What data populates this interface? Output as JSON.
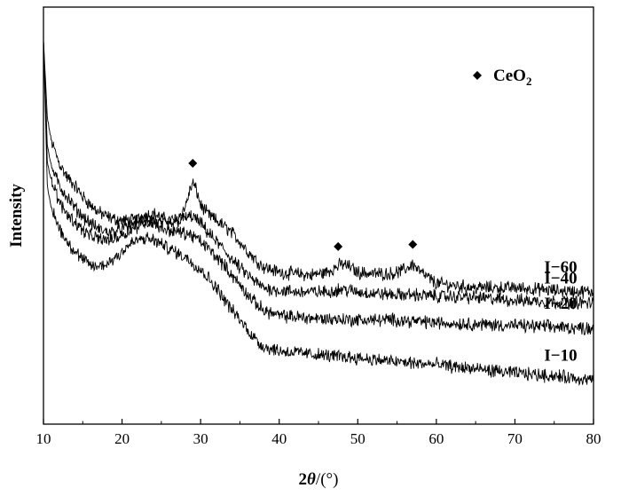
{
  "chart_data": {
    "type": "line",
    "xlabel_prefix": "2",
    "xlabel_var": "θ",
    "xlabel_suffix": "/(°)",
    "ylabel": "Intensity",
    "xlim": [
      10,
      80
    ],
    "xticks": [
      10,
      20,
      30,
      40,
      50,
      60,
      70,
      80
    ],
    "yticks": "none",
    "grid": false,
    "legend": {
      "position": "top-right",
      "marker": "diamond",
      "label_main": "CeO",
      "label_sub": "2"
    },
    "peak_markers": [
      29,
      47.5,
      57
    ],
    "series": [
      {
        "name": "I−60",
        "x": [
          10,
          10.5,
          11,
          12,
          13,
          14,
          15,
          16,
          17,
          18,
          19,
          20,
          21,
          22,
          23,
          24,
          25,
          26,
          27,
          28,
          28.5,
          29,
          29.5,
          30,
          31,
          32,
          33,
          34,
          35,
          36,
          37,
          38,
          40,
          42,
          44,
          46,
          47,
          48,
          49,
          50,
          52,
          54,
          55,
          56,
          57,
          58,
          60,
          65,
          70,
          75,
          80
        ],
        "y": [
          100,
          72,
          64,
          56,
          51,
          48,
          44,
          41,
          38.5,
          37,
          36,
          35.5,
          35.5,
          36,
          37.5,
          38,
          36.5,
          35.5,
          36,
          40,
          45,
          49,
          46,
          41,
          37.5,
          35.5,
          33.5,
          31,
          28,
          24.5,
          21.5,
          19,
          17,
          16.5,
          16,
          17,
          18.5,
          20,
          19,
          17,
          16.5,
          16.5,
          17,
          18,
          20,
          17,
          13,
          11.5,
          11.5,
          10.5,
          10
        ]
      },
      {
        "name": "I−40",
        "x": [
          10,
          10.5,
          11,
          12,
          13,
          14,
          15,
          16,
          17,
          18,
          19,
          20,
          21,
          22,
          23,
          24,
          25,
          26,
          27,
          28,
          29,
          30,
          31,
          32,
          33,
          34,
          35,
          36,
          37,
          38,
          40,
          42,
          44,
          46,
          48,
          50,
          52,
          55,
          57,
          60,
          65,
          70,
          75,
          80
        ],
        "y": [
          100,
          62,
          55,
          48,
          44,
          40,
          37,
          34.5,
          32.5,
          31.5,
          31.5,
          32.5,
          33.5,
          35,
          36,
          35.5,
          34.5,
          34,
          35,
          36.5,
          37,
          34.5,
          31,
          28,
          25,
          21.5,
          18.5,
          16,
          13.5,
          11.5,
          10.5,
          10,
          10,
          10,
          11,
          10,
          9.5,
          9,
          9,
          8.5,
          8,
          7,
          6.5,
          6
        ]
      },
      {
        "name": "I−20",
        "x": [
          10,
          10.5,
          11,
          12,
          13,
          14,
          15,
          16,
          17,
          18,
          19,
          20,
          21,
          22,
          23,
          24,
          25,
          26,
          27,
          28,
          29,
          30,
          31,
          32,
          33,
          34,
          35,
          36,
          37,
          38,
          40,
          45,
          50,
          55,
          60,
          65,
          70,
          75,
          80
        ],
        "y": [
          100,
          56,
          50,
          42,
          38,
          35,
          32,
          30,
          29,
          28.5,
          29,
          30.5,
          32,
          33.5,
          35,
          34.5,
          33,
          32,
          31.5,
          31,
          30,
          28,
          25.5,
          22.5,
          19.5,
          16,
          12.5,
          9,
          6,
          3.5,
          1.5,
          0.5,
          0,
          0,
          -1,
          -1.5,
          -2,
          -2.5,
          -3
        ]
      },
      {
        "name": "I−10",
        "x": [
          10,
          10.5,
          11,
          12,
          13,
          14,
          15,
          16,
          17,
          18,
          19,
          20,
          21,
          22,
          23,
          24,
          25,
          26,
          27,
          28,
          29,
          30,
          31,
          32,
          33,
          34,
          35,
          36,
          37,
          38,
          40,
          45,
          50,
          55,
          60,
          65,
          70,
          75,
          80
        ],
        "y": [
          100,
          47,
          40,
          33,
          28,
          24.5,
          21.5,
          19.5,
          19,
          20,
          22,
          24.5,
          27,
          28.5,
          29,
          28.5,
          27,
          25.5,
          24,
          22.5,
          20.5,
          18,
          15,
          11.5,
          7.5,
          3.5,
          0,
          -3.5,
          -7,
          -9.5,
          -11,
          -12.5,
          -13.5,
          -15,
          -16,
          -17.5,
          -19,
          -20,
          -21.5
        ]
      }
    ]
  }
}
